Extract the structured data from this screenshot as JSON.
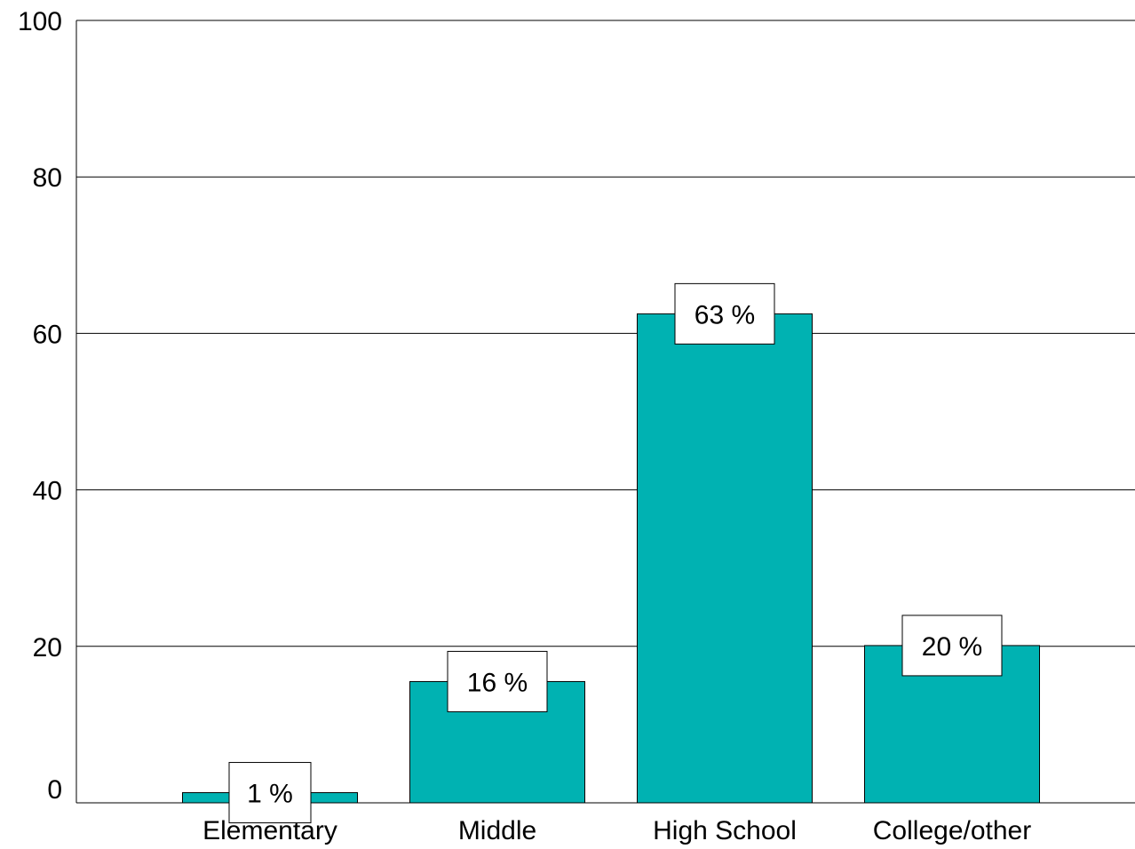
{
  "chart_data": {
    "type": "bar",
    "title": "",
    "xlabel": "",
    "ylabel": "",
    "categories": [
      "Elementary",
      "Middle",
      "High School",
      "College/other"
    ],
    "values": [
      1.3,
      15.5,
      62.5,
      20.1
    ],
    "data_labels": [
      "1 %",
      "16 %",
      "63 %",
      "20 %"
    ],
    "ylim": [
      0,
      100
    ],
    "yticks": [
      0,
      20,
      40,
      60,
      80,
      100
    ],
    "grid": true,
    "legend": "none",
    "bar_color": "#00B2B2"
  }
}
